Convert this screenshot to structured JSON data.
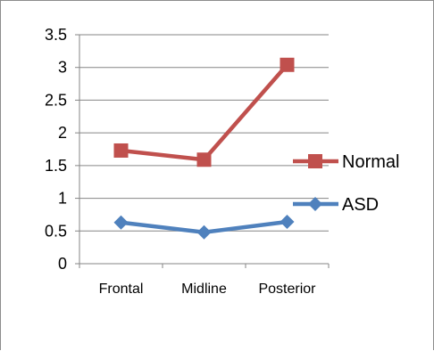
{
  "chart_data": {
    "type": "line",
    "categories": [
      "Frontal",
      "Midline",
      "Posterior"
    ],
    "series": [
      {
        "name": "Normal",
        "values": [
          1.73,
          1.59,
          3.04
        ],
        "color": "#c0504d",
        "marker": "square"
      },
      {
        "name": "ASD",
        "values": [
          0.63,
          0.48,
          0.64
        ],
        "color": "#4f81bd",
        "marker": "diamond"
      }
    ],
    "ylim": [
      0,
      3.5
    ],
    "yticks": [
      "0",
      "0.5",
      "1",
      "1.5",
      "2",
      "2.5",
      "3",
      "3.5"
    ],
    "grid": true,
    "legend": "right",
    "title": "",
    "xlabel": "",
    "ylabel": ""
  }
}
